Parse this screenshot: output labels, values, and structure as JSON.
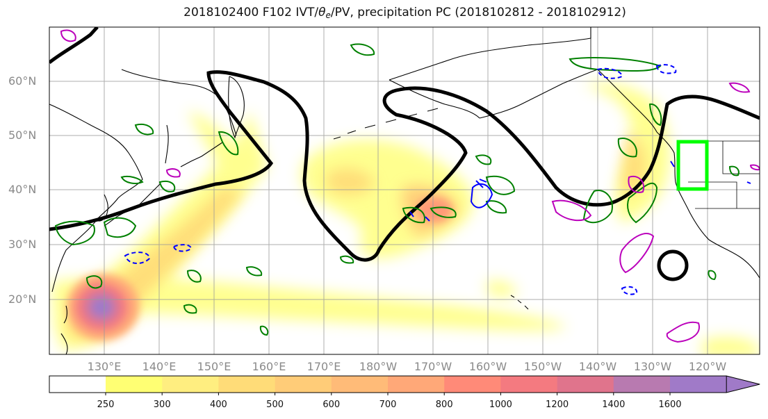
{
  "title": {
    "prefix": "2018102400 F102 IVT/",
    "theta": "θ",
    "theta_sub": "e",
    "suffix": "/PV, precipitation PC (2018102812 - 2018102912)"
  },
  "lat_labels": [
    "60°N",
    "50°N",
    "40°N",
    "30°N",
    "20°N"
  ],
  "lon_labels": [
    "130°E",
    "140°E",
    "150°E",
    "160°E",
    "170°E",
    "180°W",
    "170°W",
    "160°W",
    "150°W",
    "140°W",
    "130°W",
    "120°W"
  ],
  "colorbar": {
    "levels": [
      "250",
      "300",
      "400",
      "500",
      "600",
      "700",
      "800",
      "1000",
      "1200",
      "1400",
      "1600"
    ],
    "colors": [
      "#ffff73",
      "#ffee80",
      "#ffdc78",
      "#ffcc78",
      "#ffbb78",
      "#ffa878",
      "#ff8a78",
      "#f47a80",
      "#e0748c",
      "#b87ab0",
      "#a07ac8"
    ]
  },
  "colors": {
    "pv_contour": "#000000",
    "theta_e_pos": "#008000",
    "theta_e_neg": "#bb00bb",
    "precip_dashed": "#0000ff",
    "target_box": "#00ff00",
    "coast": "#000000",
    "grid": "#999999"
  }
}
